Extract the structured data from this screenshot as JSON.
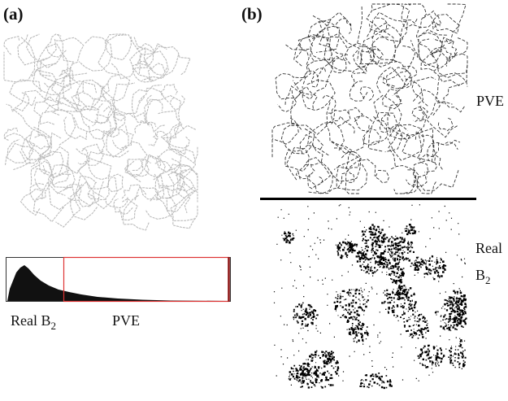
{
  "panels": [
    {
      "label": "(a)",
      "histogram_labels": [
        {
          "text": "Real B",
          "subscript": "2"
        },
        {
          "text": "PVE"
        }
      ]
    },
    {
      "label": "(b)",
      "region_labels": [
        {
          "text": "PVE"
        },
        {
          "text": "Real",
          "line2": "B",
          "subscript": "2"
        }
      ]
    }
  ]
}
